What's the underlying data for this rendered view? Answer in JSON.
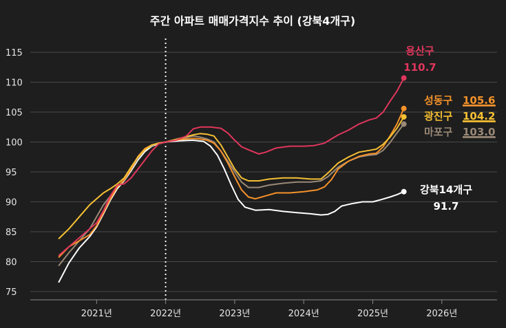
{
  "chart_data": {
    "type": "line",
    "title": "주간 아파트 매매가격지수 추이 (강북4개구)",
    "xlabel": "",
    "ylabel": "",
    "xlim": [
      2020.0,
      2026.8
    ],
    "ylim": [
      74,
      117
    ],
    "yticks": [
      75,
      80,
      85,
      90,
      95,
      100,
      105,
      110,
      115
    ],
    "xticks": [
      {
        "value": 2021.0,
        "label": "2021년"
      },
      {
        "value": 2022.0,
        "label": "2022년"
      },
      {
        "value": 2023.0,
        "label": "2023년"
      },
      {
        "value": 2024.0,
        "label": "2024년"
      },
      {
        "value": 2025.0,
        "label": "2025년"
      },
      {
        "value": 2026.0,
        "label": "2026년"
      }
    ],
    "reference_line": {
      "x": 2022.0,
      "style": "dotted"
    },
    "grid": "horizontal",
    "series": [
      {
        "name": "강북14개구",
        "color": "#ffffff",
        "end_label": "91.7",
        "points": [
          [
            2020.45,
            76.5
          ],
          [
            2020.6,
            79.8
          ],
          [
            2020.75,
            82.3
          ],
          [
            2020.9,
            84.2
          ],
          [
            2021.0,
            85.8
          ],
          [
            2021.1,
            88.0
          ],
          [
            2021.2,
            90.3
          ],
          [
            2021.3,
            92.2
          ],
          [
            2021.4,
            93.5
          ],
          [
            2021.5,
            95.2
          ],
          [
            2021.6,
            97.0
          ],
          [
            2021.7,
            98.4
          ],
          [
            2021.8,
            99.3
          ],
          [
            2021.9,
            99.7
          ],
          [
            2022.0,
            100.0
          ],
          [
            2022.2,
            100.2
          ],
          [
            2022.4,
            100.3
          ],
          [
            2022.55,
            100.1
          ],
          [
            2022.65,
            99.3
          ],
          [
            2022.75,
            97.8
          ],
          [
            2022.85,
            95.5
          ],
          [
            2022.95,
            92.8
          ],
          [
            2023.05,
            90.4
          ],
          [
            2023.15,
            89.1
          ],
          [
            2023.3,
            88.6
          ],
          [
            2023.5,
            88.7
          ],
          [
            2023.7,
            88.4
          ],
          [
            2023.9,
            88.2
          ],
          [
            2024.1,
            88.0
          ],
          [
            2024.25,
            87.8
          ],
          [
            2024.35,
            87.9
          ],
          [
            2024.45,
            88.4
          ],
          [
            2024.55,
            89.3
          ],
          [
            2024.7,
            89.7
          ],
          [
            2024.85,
            90.0
          ],
          [
            2025.0,
            90.0
          ],
          [
            2025.1,
            90.3
          ],
          [
            2025.25,
            90.8
          ],
          [
            2025.35,
            91.2
          ],
          [
            2025.45,
            91.7
          ]
        ]
      },
      {
        "name": "마포구",
        "color": "#9a8977",
        "end_label": "103.0",
        "points": [
          [
            2020.45,
            79.3
          ],
          [
            2020.6,
            81.5
          ],
          [
            2020.75,
            83.5
          ],
          [
            2020.9,
            85.5
          ],
          [
            2021.0,
            87.5
          ],
          [
            2021.1,
            89.5
          ],
          [
            2021.2,
            91.0
          ],
          [
            2021.3,
            92.5
          ],
          [
            2021.4,
            93.6
          ],
          [
            2021.5,
            95.5
          ],
          [
            2021.6,
            97.3
          ],
          [
            2021.7,
            98.7
          ],
          [
            2021.8,
            99.4
          ],
          [
            2021.9,
            99.8
          ],
          [
            2022.0,
            100.0
          ],
          [
            2022.2,
            100.5
          ],
          [
            2022.4,
            101.0
          ],
          [
            2022.5,
            100.8
          ],
          [
            2022.6,
            100.5
          ],
          [
            2022.7,
            100.0
          ],
          [
            2022.8,
            98.5
          ],
          [
            2022.9,
            96.8
          ],
          [
            2023.0,
            95.0
          ],
          [
            2023.1,
            93.3
          ],
          [
            2023.2,
            92.4
          ],
          [
            2023.35,
            92.4
          ],
          [
            2023.5,
            92.8
          ],
          [
            2023.7,
            93.1
          ],
          [
            2023.9,
            93.3
          ],
          [
            2024.1,
            93.3
          ],
          [
            2024.25,
            93.5
          ],
          [
            2024.35,
            94.2
          ],
          [
            2024.5,
            95.8
          ],
          [
            2024.65,
            96.8
          ],
          [
            2024.8,
            97.5
          ],
          [
            2024.95,
            97.8
          ],
          [
            2025.05,
            97.9
          ],
          [
            2025.15,
            98.6
          ],
          [
            2025.25,
            99.9
          ],
          [
            2025.35,
            101.5
          ],
          [
            2025.45,
            103.0
          ]
        ]
      },
      {
        "name": "성동구",
        "color": "#f5922a",
        "end_label": "105.6",
        "points": [
          [
            2020.45,
            80.7
          ],
          [
            2020.6,
            82.5
          ],
          [
            2020.75,
            83.5
          ],
          [
            2020.9,
            84.5
          ],
          [
            2021.0,
            86.0
          ],
          [
            2021.1,
            88.2
          ],
          [
            2021.2,
            90.5
          ],
          [
            2021.3,
            92.5
          ],
          [
            2021.4,
            93.7
          ],
          [
            2021.5,
            95.5
          ],
          [
            2021.6,
            97.6
          ],
          [
            2021.7,
            98.9
          ],
          [
            2021.8,
            99.5
          ],
          [
            2021.9,
            99.8
          ],
          [
            2022.0,
            100.0
          ],
          [
            2022.2,
            100.4
          ],
          [
            2022.4,
            100.6
          ],
          [
            2022.5,
            100.5
          ],
          [
            2022.6,
            100.3
          ],
          [
            2022.7,
            99.8
          ],
          [
            2022.8,
            98.5
          ],
          [
            2022.9,
            96.5
          ],
          [
            2023.0,
            94.2
          ],
          [
            2023.1,
            92.0
          ],
          [
            2023.2,
            90.8
          ],
          [
            2023.3,
            90.5
          ],
          [
            2023.45,
            91.0
          ],
          [
            2023.6,
            91.5
          ],
          [
            2023.8,
            91.5
          ],
          [
            2024.0,
            91.7
          ],
          [
            2024.2,
            92.0
          ],
          [
            2024.3,
            92.5
          ],
          [
            2024.4,
            93.7
          ],
          [
            2024.5,
            95.5
          ],
          [
            2024.65,
            96.8
          ],
          [
            2024.8,
            97.6
          ],
          [
            2024.95,
            98.0
          ],
          [
            2025.05,
            98.1
          ],
          [
            2025.15,
            99.2
          ],
          [
            2025.25,
            101.0
          ],
          [
            2025.35,
            103.0
          ],
          [
            2025.45,
            105.6
          ]
        ]
      },
      {
        "name": "광진구",
        "color": "#f6c033",
        "end_label": "104.2",
        "points": [
          [
            2020.45,
            83.8
          ],
          [
            2020.6,
            85.5
          ],
          [
            2020.75,
            87.5
          ],
          [
            2020.9,
            89.5
          ],
          [
            2021.0,
            90.5
          ],
          [
            2021.1,
            91.5
          ],
          [
            2021.2,
            92.2
          ],
          [
            2021.3,
            93.0
          ],
          [
            2021.4,
            94.0
          ],
          [
            2021.5,
            95.8
          ],
          [
            2021.6,
            97.5
          ],
          [
            2021.7,
            98.7
          ],
          [
            2021.8,
            99.5
          ],
          [
            2021.9,
            99.8
          ],
          [
            2022.0,
            100.0
          ],
          [
            2022.2,
            100.6
          ],
          [
            2022.4,
            101.2
          ],
          [
            2022.5,
            101.4
          ],
          [
            2022.6,
            101.3
          ],
          [
            2022.7,
            101.0
          ],
          [
            2022.8,
            99.5
          ],
          [
            2022.9,
            97.5
          ],
          [
            2023.0,
            95.5
          ],
          [
            2023.1,
            94.0
          ],
          [
            2023.2,
            93.5
          ],
          [
            2023.35,
            93.5
          ],
          [
            2023.5,
            93.8
          ],
          [
            2023.7,
            94.0
          ],
          [
            2023.9,
            94.0
          ],
          [
            2024.1,
            93.8
          ],
          [
            2024.25,
            93.8
          ],
          [
            2024.35,
            94.8
          ],
          [
            2024.5,
            96.5
          ],
          [
            2024.65,
            97.5
          ],
          [
            2024.8,
            98.3
          ],
          [
            2024.95,
            98.6
          ],
          [
            2025.05,
            98.8
          ],
          [
            2025.15,
            99.6
          ],
          [
            2025.25,
            100.8
          ],
          [
            2025.35,
            102.3
          ],
          [
            2025.45,
            104.2
          ]
        ]
      },
      {
        "name": "용산구",
        "color": "#e0365c",
        "end_label": "110.7",
        "points": [
          [
            2020.45,
            81.0
          ],
          [
            2020.6,
            82.5
          ],
          [
            2020.75,
            84.0
          ],
          [
            2020.9,
            85.5
          ],
          [
            2021.0,
            86.5
          ],
          [
            2021.1,
            88.5
          ],
          [
            2021.2,
            91.0
          ],
          [
            2021.3,
            92.8
          ],
          [
            2021.4,
            93.0
          ],
          [
            2021.5,
            94.0
          ],
          [
            2021.6,
            95.5
          ],
          [
            2021.7,
            97.0
          ],
          [
            2021.8,
            98.5
          ],
          [
            2021.9,
            99.7
          ],
          [
            2022.0,
            100.0
          ],
          [
            2022.15,
            100.3
          ],
          [
            2022.3,
            101.0
          ],
          [
            2022.4,
            102.2
          ],
          [
            2022.5,
            102.5
          ],
          [
            2022.65,
            102.5
          ],
          [
            2022.8,
            102.3
          ],
          [
            2022.9,
            101.5
          ],
          [
            2023.0,
            100.3
          ],
          [
            2023.1,
            99.2
          ],
          [
            2023.2,
            98.7
          ],
          [
            2023.35,
            98.0
          ],
          [
            2023.45,
            98.3
          ],
          [
            2023.6,
            99.0
          ],
          [
            2023.8,
            99.3
          ],
          [
            2024.0,
            99.3
          ],
          [
            2024.15,
            99.4
          ],
          [
            2024.3,
            99.8
          ],
          [
            2024.4,
            100.5
          ],
          [
            2024.5,
            101.2
          ],
          [
            2024.65,
            102.0
          ],
          [
            2024.8,
            103.0
          ],
          [
            2024.95,
            103.7
          ],
          [
            2025.05,
            104.0
          ],
          [
            2025.15,
            105.0
          ],
          [
            2025.25,
            106.8
          ],
          [
            2025.35,
            108.5
          ],
          [
            2025.45,
            110.7
          ]
        ]
      }
    ],
    "annotations": [
      {
        "series": "용산구",
        "name": "용산구",
        "value": "110.7",
        "color": "#e0365c",
        "underline": false
      },
      {
        "series": "성동구",
        "name": "성동구",
        "value": "105.6",
        "color": "#f5922a",
        "underline": true
      },
      {
        "series": "광진구",
        "name": "광진구",
        "value": "104.2",
        "color": "#f6c033",
        "underline": true
      },
      {
        "series": "마포구",
        "name": "마포구",
        "value": "103.0",
        "color": "#9a8977",
        "underline": true
      },
      {
        "series": "강북14개구",
        "name": "강북14개구",
        "value": "91.7",
        "color": "#ffffff",
        "underline": false
      }
    ],
    "colors": {
      "background": "#1e1e1e",
      "grid": "#4a4a4a",
      "text": "#e6e6e6"
    }
  }
}
